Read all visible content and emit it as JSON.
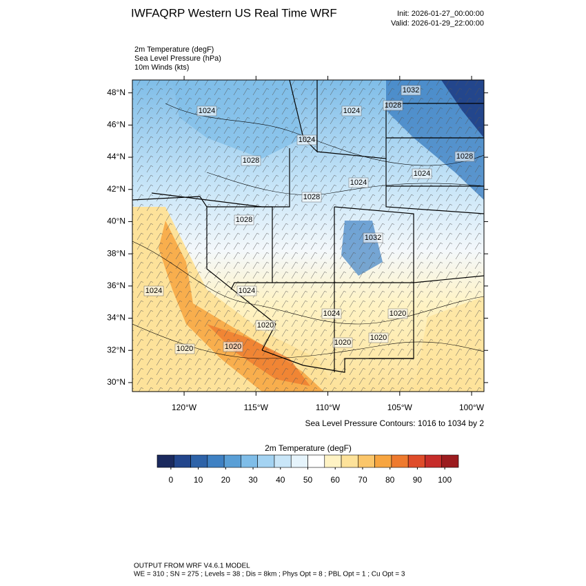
{
  "header": {
    "title": "IWFAQRP Western US Real Time WRF",
    "init": "Init: 2026-01-27_00:00:00",
    "valid": "Valid: 2026-01-29_22:00:00"
  },
  "fields": [
    "2m Temperature   (degF)",
    "Sea Level Pressure   (hPa)",
    "10m Winds   (kts)"
  ],
  "map": {
    "xlim": [
      -123.6,
      -99.14
    ],
    "ylim": [
      29.44,
      48.8
    ],
    "yticks": [
      {
        "value": 48,
        "label": "48°N"
      },
      {
        "value": 46,
        "label": "46°N"
      },
      {
        "value": 44,
        "label": "44°N"
      },
      {
        "value": 42,
        "label": "42°N"
      },
      {
        "value": 40,
        "label": "40°N"
      },
      {
        "value": 38,
        "label": "38°N"
      },
      {
        "value": 36,
        "label": "36°N"
      },
      {
        "value": 34,
        "label": "34°N"
      },
      {
        "value": 32,
        "label": "32°N"
      },
      {
        "value": 30,
        "label": "30°N"
      }
    ],
    "xticks": [
      {
        "value": -120,
        "label": "120°W"
      },
      {
        "value": -115,
        "label": "115°W"
      },
      {
        "value": -110,
        "label": "110°W"
      },
      {
        "value": -105,
        "label": "105°W"
      },
      {
        "value": -100,
        "label": "100°W"
      }
    ],
    "contour_labels": [
      "1024",
      "1024",
      "1028",
      "1032",
      "1024",
      "1028",
      "1028",
      "1024",
      "1024",
      "1028",
      "1028",
      "1024",
      "1024",
      "1024",
      "1020",
      "1020",
      "1020",
      "1020",
      "1020",
      "1020",
      "1032"
    ],
    "contour_note": "Sea Level Pressure Contours: 1016 to 1034 by 2"
  },
  "colorbar": {
    "title": "2m Temperature  (degF)",
    "lim": [
      -5,
      105
    ],
    "ticks": [
      0,
      10,
      20,
      30,
      40,
      50,
      60,
      70,
      80,
      90,
      100
    ],
    "colors": [
      "#1b2a5e",
      "#23468c",
      "#2e63a8",
      "#3f81c3",
      "#5a9fd6",
      "#7fbde8",
      "#a4d3f2",
      "#c9e6f8",
      "#e6f4fc",
      "#ffffff",
      "#fff3c4",
      "#fde29a",
      "#fbc66a",
      "#f7a540",
      "#ee7a2e",
      "#df4c2a",
      "#c62d2a",
      "#9c1c1f"
    ]
  },
  "footer": {
    "line1": "OUTPUT FROM WRF V4.6.1 MODEL",
    "line2": "WE = 310 ; SN = 275 ; Levels = 38 ; Dis = 8km ; Phys Opt = 8 ; PBL Opt = 1 ; Cu Opt = 3"
  }
}
